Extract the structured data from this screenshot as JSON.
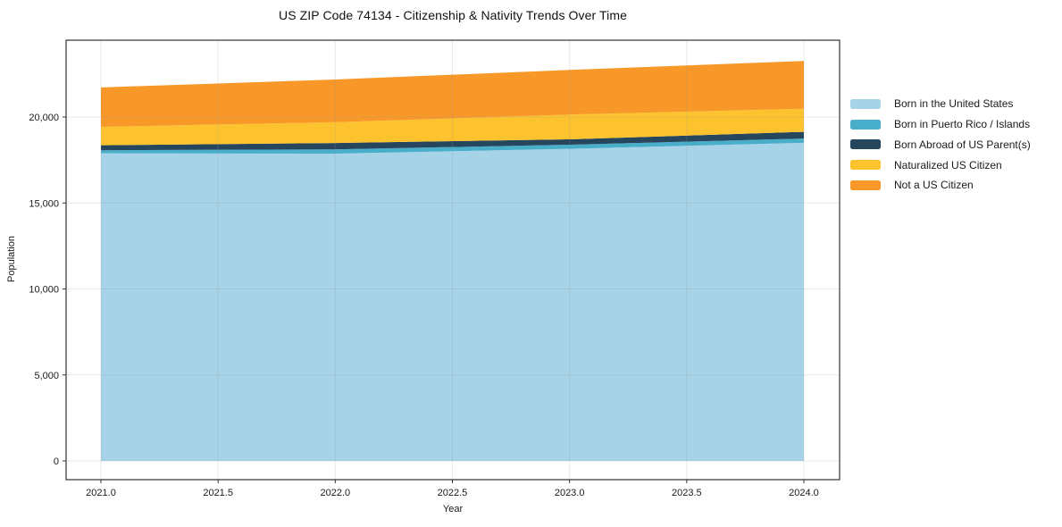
{
  "window": {
    "background": "#ffffff"
  },
  "colors": {
    "grid": "rgba(150,150,150,0.22)",
    "spine": "#333333",
    "tick": "#333333",
    "text": "#1a1a1a"
  },
  "chart_data": {
    "type": "area",
    "stacked": true,
    "title": "US ZIP Code 74134 - Citizenship & Nativity Trends Over Time",
    "xlabel": "Year",
    "ylabel": "Population",
    "x": [
      2021,
      2022,
      2023,
      2024
    ],
    "series": [
      {
        "name": "Born in the United States",
        "color": "#a6d3e7",
        "values": [
          17890,
          17870,
          18150,
          18500
        ]
      },
      {
        "name": "Born in Puerto Rico / Islands",
        "color": "#48aec9",
        "values": [
          180,
          250,
          240,
          250
        ]
      },
      {
        "name": "Born Abroad of US Parent(s)",
        "color": "#25465c",
        "values": [
          290,
          370,
          310,
          390
        ]
      },
      {
        "name": "Naturalized US Citizen",
        "color": "#fdc32e",
        "values": [
          1070,
          1210,
          1440,
          1345
        ]
      },
      {
        "name": "Not a US Citizen",
        "color": "#f89828",
        "values": [
          2290,
          2480,
          2600,
          2775
        ]
      }
    ],
    "totals": [
      21720,
      22180,
      22740,
      23260
    ],
    "xtick_values": [
      2021.0,
      2021.5,
      2022.0,
      2022.5,
      2023.0,
      2023.5,
      2024.0
    ],
    "xtick_labels": [
      "2021.0",
      "2021.5",
      "2022.0",
      "2022.5",
      "2023.0",
      "2023.5",
      "2024.0"
    ],
    "ytick_values": [
      0,
      5000,
      10000,
      15000,
      20000
    ],
    "ytick_labels": [
      "0",
      "5,000",
      "10,000",
      "15,000",
      "20,000"
    ],
    "xlim": [
      2020.85,
      2024.15
    ],
    "ylim": [
      -1040,
      24470
    ],
    "grid": true,
    "legend_position": "right-outside"
  }
}
